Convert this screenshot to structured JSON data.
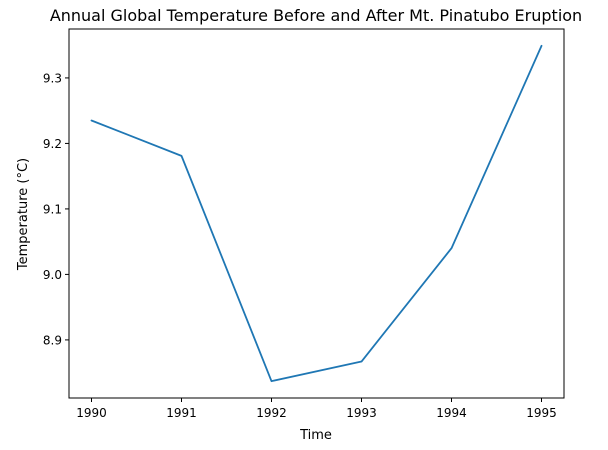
{
  "chart_data": {
    "type": "line",
    "title": "Annual Global Temperature Before and After Mt. Pinatubo Eruption",
    "xlabel": "Time",
    "ylabel": "Temperature (°C)",
    "x": [
      1990,
      1991,
      1992,
      1993,
      1994,
      1995
    ],
    "series": [
      {
        "values": [
          9.235,
          9.181,
          8.837,
          8.867,
          9.04,
          9.349
        ]
      }
    ],
    "xticks": [
      "1990",
      "1991",
      "1992",
      "1993",
      "1994",
      "1995"
    ],
    "yticks": [
      "8.9",
      "9.0",
      "9.1",
      "9.2",
      "9.3"
    ],
    "xlim": [
      1989.75,
      1995.25
    ],
    "ylim": [
      8.8113,
      9.3747
    ],
    "grid": false,
    "colors": {
      "line": "#1f77b4"
    }
  }
}
